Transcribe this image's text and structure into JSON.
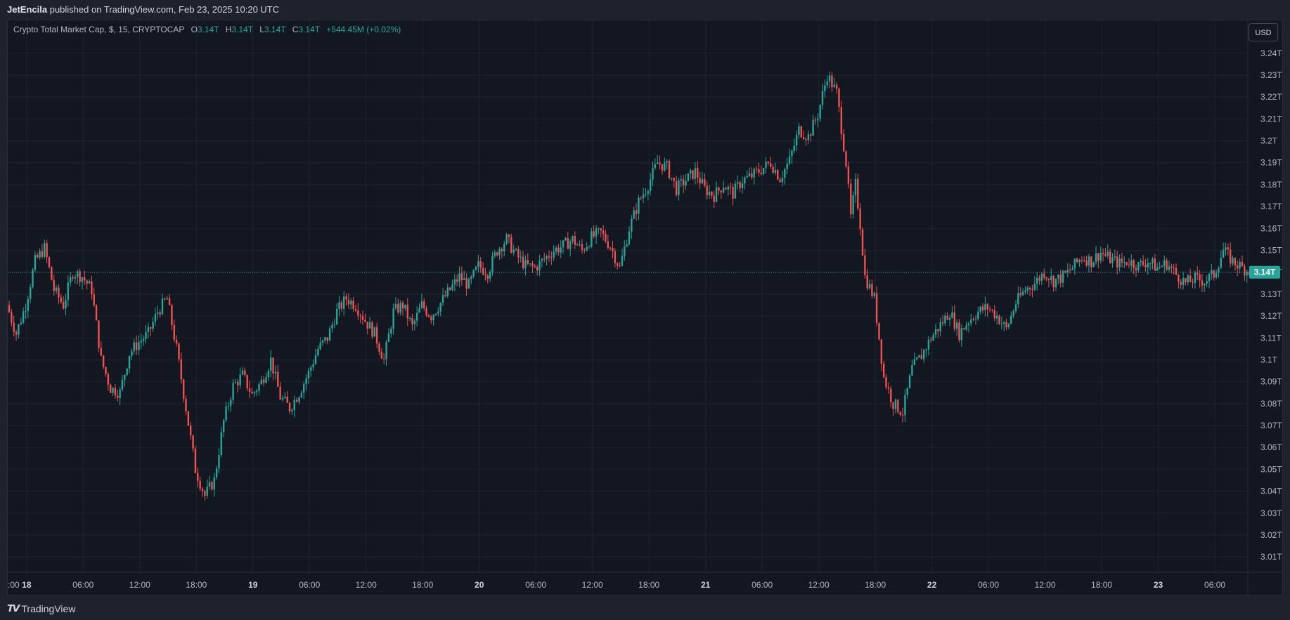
{
  "header": {
    "author": "JetEncila",
    "text": "published on TradingView.com, Feb 23, 2025 10:20 UTC"
  },
  "legend": {
    "symbol": "Crypto Total Market Cap, $, 15, CRYPTOCAP",
    "open_label": "O",
    "open": "3.14T",
    "high_label": "H",
    "high": "3.14T",
    "low_label": "L",
    "low": "3.14T",
    "close_label": "C",
    "close": "3.14T",
    "change": "+544.45M (+0.02%)"
  },
  "currency_button": "USD",
  "footer": {
    "brand": "TradingView",
    "logo_icon": "tradingview-logo-icon"
  },
  "colors": {
    "up": "#26a69a",
    "down": "#ef5350",
    "background": "#131722",
    "grid": "#1f2430",
    "axis_text": "#b2b5be",
    "last_price_badge": "#26a69a"
  },
  "chart_data": {
    "type": "candlestick",
    "title": "Crypto Total Market Cap, $, 15, CRYPTOCAP",
    "interval_minutes": 15,
    "last_price": 3.14,
    "last_price_label": "3.14T",
    "ylim": [
      3.003,
      3.255
    ],
    "xlim": [
      "2025-02-17 22:00",
      "2025-02-23 09:30"
    ],
    "y_ticks": [
      3.01,
      3.02,
      3.03,
      3.04,
      3.05,
      3.06,
      3.07,
      3.08,
      3.09,
      3.1,
      3.11,
      3.12,
      3.13,
      3.14,
      3.15,
      3.16,
      3.17,
      3.18,
      3.19,
      3.2,
      3.21,
      3.22,
      3.23,
      3.24
    ],
    "y_tick_labels": [
      "3.01T",
      "3.02T",
      "3.03T",
      "3.04T",
      "3.05T",
      "3.06T",
      "3.07T",
      "3.08T",
      "3.09T",
      "3.1T",
      "3.11T",
      "3.12T",
      "3.13T",
      "3.14T",
      "3.15T",
      "3.16T",
      "3.17T",
      "3.18T",
      "3.19T",
      "3.2T",
      "3.21T",
      "3.22T",
      "3.23T",
      "3.24T"
    ],
    "x_ticks": [
      {
        "t": "2025-02-18 00:00",
        "label": "18"
      },
      {
        "t": "2025-02-18 06:00",
        "label": "06:00"
      },
      {
        "t": "2025-02-18 12:00",
        "label": "12:00"
      },
      {
        "t": "2025-02-18 18:00",
        "label": "18:00"
      },
      {
        "t": "2025-02-19 00:00",
        "label": "19"
      },
      {
        "t": "2025-02-19 06:00",
        "label": "06:00"
      },
      {
        "t": "2025-02-19 12:00",
        "label": "12:00"
      },
      {
        "t": "2025-02-19 18:00",
        "label": "18:00"
      },
      {
        "t": "2025-02-20 00:00",
        "label": "20"
      },
      {
        "t": "2025-02-20 06:00",
        "label": "06:00"
      },
      {
        "t": "2025-02-20 12:00",
        "label": "12:00"
      },
      {
        "t": "2025-02-20 18:00",
        "label": "18:00"
      },
      {
        "t": "2025-02-21 00:00",
        "label": "21"
      },
      {
        "t": "2025-02-21 06:00",
        "label": "06:00"
      },
      {
        "t": "2025-02-21 12:00",
        "label": "12:00"
      },
      {
        "t": "2025-02-21 18:00",
        "label": "18:00"
      },
      {
        "t": "2025-02-22 00:00",
        "label": "22"
      },
      {
        "t": "2025-02-22 06:00",
        "label": "06:00"
      },
      {
        "t": "2025-02-22 12:00",
        "label": "12:00"
      },
      {
        "t": "2025-02-22 18:00",
        "label": "18:00"
      },
      {
        "t": "2025-02-23 00:00",
        "label": "23"
      },
      {
        "t": "2025-02-23 06:00",
        "label": "06:00"
      }
    ],
    "partial_left_label": ":00",
    "close_path": [
      [
        "2025-02-17 22:00",
        3.125
      ],
      [
        "2025-02-17 23:00",
        3.112
      ],
      [
        "2025-02-18 00:00",
        3.125
      ],
      [
        "2025-02-18 01:00",
        3.145
      ],
      [
        "2025-02-18 02:00",
        3.151
      ],
      [
        "2025-02-18 03:00",
        3.132
      ],
      [
        "2025-02-18 04:00",
        3.125
      ],
      [
        "2025-02-18 05:00",
        3.14
      ],
      [
        "2025-02-18 06:00",
        3.138
      ],
      [
        "2025-02-18 07:00",
        3.132
      ],
      [
        "2025-02-18 08:00",
        3.1
      ],
      [
        "2025-02-18 09:00",
        3.087
      ],
      [
        "2025-02-18 10:00",
        3.085
      ],
      [
        "2025-02-18 11:00",
        3.103
      ],
      [
        "2025-02-18 12:00",
        3.108
      ],
      [
        "2025-02-18 13:00",
        3.112
      ],
      [
        "2025-02-18 14:00",
        3.122
      ],
      [
        "2025-02-18 15:00",
        3.128
      ],
      [
        "2025-02-18 16:00",
        3.105
      ],
      [
        "2025-02-18 17:00",
        3.078
      ],
      [
        "2025-02-18 18:00",
        3.05
      ],
      [
        "2025-02-18 19:00",
        3.038
      ],
      [
        "2025-02-18 20:00",
        3.045
      ],
      [
        "2025-02-18 21:00",
        3.072
      ],
      [
        "2025-02-18 22:00",
        3.088
      ],
      [
        "2025-02-18 23:00",
        3.093
      ],
      [
        "2025-02-19 00:00",
        3.084
      ],
      [
        "2025-02-19 01:00",
        3.09
      ],
      [
        "2025-02-19 02:00",
        3.1
      ],
      [
        "2025-02-19 03:00",
        3.083
      ],
      [
        "2025-02-19 04:00",
        3.078
      ],
      [
        "2025-02-19 05:00",
        3.085
      ],
      [
        "2025-02-19 06:00",
        3.094
      ],
      [
        "2025-02-19 07:00",
        3.105
      ],
      [
        "2025-02-19 08:00",
        3.11
      ],
      [
        "2025-02-19 09:00",
        3.122
      ],
      [
        "2025-02-19 10:00",
        3.128
      ],
      [
        "2025-02-19 11:00",
        3.125
      ],
      [
        "2025-02-19 12:00",
        3.118
      ],
      [
        "2025-02-19 13:00",
        3.112
      ],
      [
        "2025-02-19 14:00",
        3.1
      ],
      [
        "2025-02-19 15:00",
        3.122
      ],
      [
        "2025-02-19 16:00",
        3.125
      ],
      [
        "2025-02-19 17:00",
        3.115
      ],
      [
        "2025-02-19 18:00",
        3.125
      ],
      [
        "2025-02-19 19:00",
        3.12
      ],
      [
        "2025-02-19 20:00",
        3.126
      ],
      [
        "2025-02-19 21:00",
        3.132
      ],
      [
        "2025-02-19 22:00",
        3.138
      ],
      [
        "2025-02-19 23:00",
        3.134
      ],
      [
        "2025-02-20 00:00",
        3.143
      ],
      [
        "2025-02-20 01:00",
        3.14
      ],
      [
        "2025-02-20 02:00",
        3.15
      ],
      [
        "2025-02-20 03:00",
        3.155
      ],
      [
        "2025-02-20 04:00",
        3.148
      ],
      [
        "2025-02-20 05:00",
        3.143
      ],
      [
        "2025-02-20 06:00",
        3.142
      ],
      [
        "2025-02-20 07:00",
        3.146
      ],
      [
        "2025-02-20 08:00",
        3.15
      ],
      [
        "2025-02-20 09:00",
        3.152
      ],
      [
        "2025-02-20 10:00",
        3.155
      ],
      [
        "2025-02-20 11:00",
        3.15
      ],
      [
        "2025-02-20 12:00",
        3.156
      ],
      [
        "2025-02-20 13:00",
        3.158
      ],
      [
        "2025-02-20 14:00",
        3.152
      ],
      [
        "2025-02-20 15:00",
        3.142
      ],
      [
        "2025-02-20 16:00",
        3.16
      ],
      [
        "2025-02-20 17:00",
        3.172
      ],
      [
        "2025-02-20 18:00",
        3.18
      ],
      [
        "2025-02-20 19:00",
        3.19
      ],
      [
        "2025-02-20 20:00",
        3.188
      ],
      [
        "2025-02-20 21:00",
        3.178
      ],
      [
        "2025-02-20 22:00",
        3.182
      ],
      [
        "2025-02-20 23:00",
        3.186
      ],
      [
        "2025-02-21 00:00",
        3.178
      ],
      [
        "2025-02-21 01:00",
        3.175
      ],
      [
        "2025-02-21 02:00",
        3.18
      ],
      [
        "2025-02-21 03:00",
        3.176
      ],
      [
        "2025-02-21 04:00",
        3.182
      ],
      [
        "2025-02-21 05:00",
        3.184
      ],
      [
        "2025-02-21 06:00",
        3.187
      ],
      [
        "2025-02-21 07:00",
        3.19
      ],
      [
        "2025-02-21 08:00",
        3.183
      ],
      [
        "2025-02-21 09:00",
        3.191
      ],
      [
        "2025-02-21 10:00",
        3.205
      ],
      [
        "2025-02-21 11:00",
        3.202
      ],
      [
        "2025-02-21 12:00",
        3.212
      ],
      [
        "2025-02-21 13:00",
        3.23
      ],
      [
        "2025-02-21 14:00",
        3.222
      ],
      [
        "2025-02-21 15:00",
        3.19
      ],
      [
        "2025-02-21 15:30",
        3.165
      ],
      [
        "2025-02-21 16:00",
        3.18
      ],
      [
        "2025-02-21 16:30",
        3.162
      ],
      [
        "2025-02-21 17:00",
        3.138
      ],
      [
        "2025-02-21 18:00",
        3.128
      ],
      [
        "2025-02-21 19:00",
        3.092
      ],
      [
        "2025-02-21 20:00",
        3.08
      ],
      [
        "2025-02-21 21:00",
        3.076
      ],
      [
        "2025-02-21 22:00",
        3.096
      ],
      [
        "2025-02-21 23:00",
        3.102
      ],
      [
        "2025-02-22 00:00",
        3.11
      ],
      [
        "2025-02-22 01:00",
        3.116
      ],
      [
        "2025-02-22 02:00",
        3.122
      ],
      [
        "2025-02-22 03:00",
        3.112
      ],
      [
        "2025-02-22 04:00",
        3.118
      ],
      [
        "2025-02-22 05:00",
        3.122
      ],
      [
        "2025-02-22 06:00",
        3.124
      ],
      [
        "2025-02-22 07:00",
        3.12
      ],
      [
        "2025-02-22 08:00",
        3.114
      ],
      [
        "2025-02-22 09:00",
        3.126
      ],
      [
        "2025-02-22 10:00",
        3.132
      ],
      [
        "2025-02-22 11:00",
        3.135
      ],
      [
        "2025-02-22 12:00",
        3.14
      ],
      [
        "2025-02-22 13:00",
        3.136
      ],
      [
        "2025-02-22 14:00",
        3.138
      ],
      [
        "2025-02-22 15:00",
        3.142
      ],
      [
        "2025-02-22 16:00",
        3.147
      ],
      [
        "2025-02-22 17:00",
        3.145
      ],
      [
        "2025-02-22 18:00",
        3.149
      ],
      [
        "2025-02-22 19:00",
        3.146
      ],
      [
        "2025-02-22 20:00",
        3.144
      ],
      [
        "2025-02-22 21:00",
        3.145
      ],
      [
        "2025-02-22 22:00",
        3.143
      ],
      [
        "2025-02-22 23:00",
        3.145
      ],
      [
        "2025-02-23 00:00",
        3.142
      ],
      [
        "2025-02-23 01:00",
        3.144
      ],
      [
        "2025-02-23 02:00",
        3.139
      ],
      [
        "2025-02-23 03:00",
        3.135
      ],
      [
        "2025-02-23 04:00",
        3.137
      ],
      [
        "2025-02-23 05:00",
        3.136
      ],
      [
        "2025-02-23 06:00",
        3.139
      ],
      [
        "2025-02-23 07:00",
        3.15
      ],
      [
        "2025-02-23 08:00",
        3.145
      ],
      [
        "2025-02-23 09:00",
        3.142
      ],
      [
        "2025-02-23 09:30",
        3.141
      ]
    ]
  }
}
